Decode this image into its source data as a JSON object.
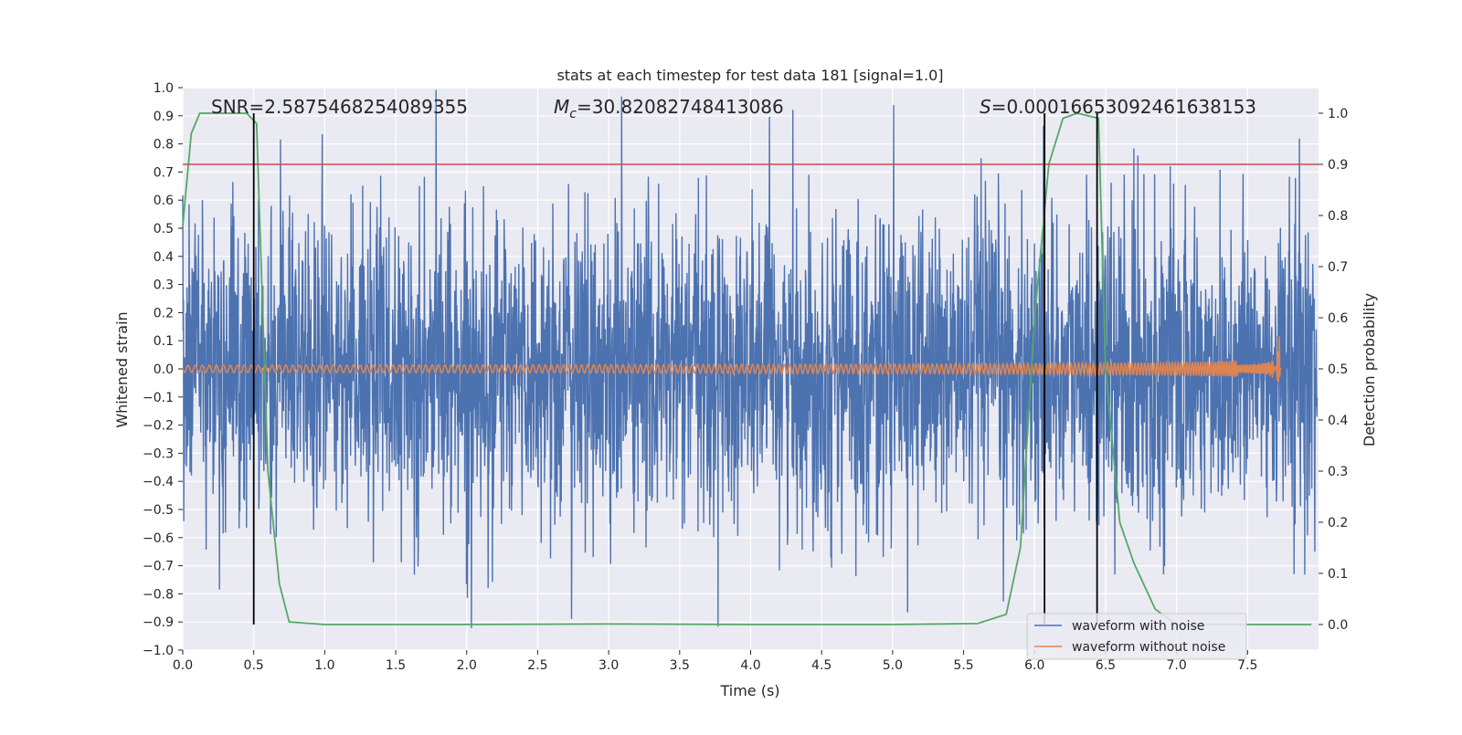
{
  "chart_data": {
    "type": "line",
    "title": "stats at each timestep for test data 181 [signal=1.0]",
    "xlabel": "Time (s)",
    "ylabel_left": "Whitened strain",
    "ylabel_right": "Detection probability",
    "xlim": [
      0.0,
      8.0
    ],
    "ylim_left": [
      -1.0,
      1.0
    ],
    "ylim_right": [
      -0.05,
      1.05
    ],
    "x_ticks": [
      "0.0",
      "0.5",
      "1.0",
      "1.5",
      "2.0",
      "2.5",
      "3.0",
      "3.5",
      "4.0",
      "4.5",
      "5.0",
      "5.5",
      "6.0",
      "6.5",
      "7.0",
      "7.5"
    ],
    "y_ticks_left": [
      "1.0",
      "0.9",
      "0.8",
      "0.7",
      "0.6",
      "0.5",
      "0.4",
      "0.3",
      "0.2",
      "0.1",
      "0.0",
      "−0.1",
      "−0.2",
      "−0.3",
      "−0.4",
      "−0.5",
      "−0.6",
      "−0.7",
      "−0.8",
      "−0.9",
      "−1.0"
    ],
    "y_ticks_right": [
      "1.0",
      "0.9",
      "0.8",
      "0.7",
      "0.6",
      "0.5",
      "0.4",
      "0.3",
      "0.2",
      "0.1",
      "0.0"
    ],
    "grid": true,
    "legend_position": "bottom-right",
    "annotations": {
      "snr": "SNR=2.5875468254089355",
      "mc_symbol": "M",
      "mc_sub": "c",
      "mc_value": "=30.82082748413086",
      "s_symbol": "S",
      "s_value": "=0.00016653092461638153"
    },
    "colors": {
      "noise": "#4c72b0",
      "clean": "#dd8452",
      "probability": "#55a868",
      "threshold": "#c44e52",
      "markers": "#000000",
      "background": "#eaeaf2"
    },
    "series": [
      {
        "name": "waveform with noise",
        "axis": "left",
        "style": "dense-noise",
        "x_range": [
          0.0,
          7.99
        ],
        "y_typical_amplitude": 0.5,
        "y_peak_range": [
          -0.92,
          0.99
        ]
      },
      {
        "name": "waveform without noise",
        "axis": "left",
        "style": "chirp",
        "x_range": [
          0.0,
          7.74
        ],
        "merger_time": 7.73,
        "peak_amplitude": 0.2
      },
      {
        "axis": "right",
        "style": "line",
        "x": [
          0.0,
          0.06,
          0.12,
          0.2,
          0.3,
          0.45,
          0.52,
          0.6,
          0.68,
          0.75,
          1.0,
          2.0,
          3.0,
          4.0,
          5.0,
          5.6,
          5.8,
          5.9,
          6.0,
          6.1,
          6.2,
          6.3,
          6.45,
          6.5,
          6.6,
          6.7,
          6.85,
          7.0,
          7.5,
          7.95
        ],
        "y": [
          0.78,
          0.96,
          1.0,
          1.0,
          1.0,
          1.0,
          0.98,
          0.3,
          0.08,
          0.005,
          0.0,
          0.0,
          0.001,
          0.0,
          0.0,
          0.002,
          0.02,
          0.15,
          0.6,
          0.9,
          0.99,
          1.0,
          0.99,
          0.5,
          0.2,
          0.12,
          0.03,
          0.0,
          0.0,
          0.0
        ]
      },
      {
        "axis": "right",
        "style": "hline",
        "y": 0.9
      },
      {
        "axis": "right",
        "style": "vlines",
        "x": [
          0.5,
          6.07,
          6.44
        ],
        "y_range": [
          0.0,
          1.0
        ]
      }
    ]
  }
}
